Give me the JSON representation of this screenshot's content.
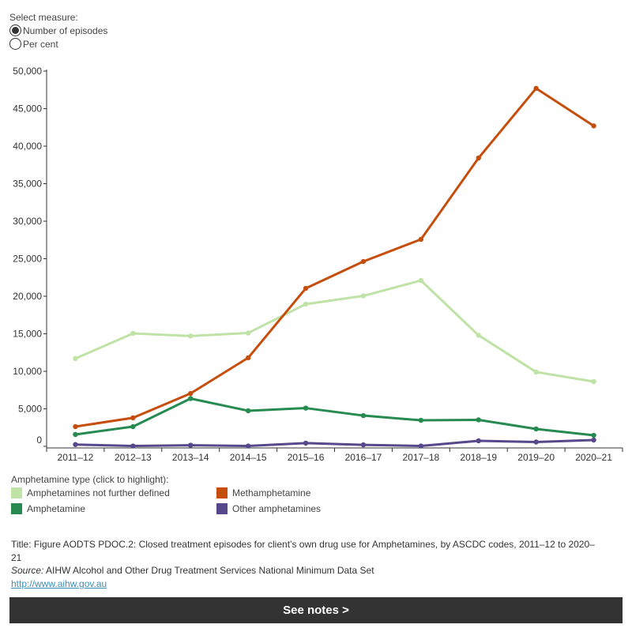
{
  "measure": {
    "label": "Select measure:",
    "options": [
      "Number of episodes",
      "Per cent"
    ],
    "selected": "Number of episodes"
  },
  "chart_data": {
    "type": "line",
    "categories": [
      "2011–12",
      "2012–13",
      "2013–14",
      "2014–15",
      "2015–16",
      "2016–17",
      "2017–18",
      "2018–19",
      "2019–20",
      "2020–21"
    ],
    "ylim": [
      0,
      50000
    ],
    "yticks": [
      0,
      5000,
      10000,
      15000,
      20000,
      25000,
      30000,
      35000,
      40000,
      45000,
      50000
    ],
    "ytick_labels": [
      "0",
      "5,000",
      "10,000",
      "15,000",
      "20,000",
      "25,000",
      "30,000",
      "35,000",
      "40,000",
      "45,000",
      "50,000"
    ],
    "grid": false,
    "series": [
      {
        "name": "Amphetamines not further defined",
        "color": "#bfe2a6",
        "values": [
          11700,
          15050,
          14700,
          15100,
          18950,
          20050,
          22100,
          14800,
          9900,
          8630
        ]
      },
      {
        "name": "Methamphetamine",
        "color": "#c54e0c",
        "values": [
          2630,
          3800,
          7050,
          11800,
          21050,
          24630,
          27580,
          38420,
          47700,
          42700
        ]
      },
      {
        "name": "Amphetamine",
        "color": "#268a51",
        "values": [
          1580,
          2630,
          6370,
          4740,
          5100,
          4100,
          3470,
          3530,
          2320,
          1470
        ]
      },
      {
        "name": "Other amphetamines",
        "color": "#56488a",
        "values": [
          240,
          50,
          150,
          50,
          430,
          200,
          50,
          740,
          580,
          840
        ]
      }
    ]
  },
  "legend": {
    "title": "Amphetamine type (click to highlight):",
    "items": [
      "Amphetamines not further defined",
      "Methamphetamine",
      "Amphetamine",
      "Other amphetamines"
    ]
  },
  "footer": {
    "title": "Title: Figure AODTS PDOC.2:  Closed treatment episodes for client’s own drug use for Amphetamines, by ASCDC codes, 2011–12 to 2020–21",
    "source_label": "Source:",
    "source_text": " AIHW Alcohol and Other Drug Treatment Services National Minimum Data Set",
    "link": "http://www.aihw.gov.au",
    "notes_button": "See notes >"
  }
}
